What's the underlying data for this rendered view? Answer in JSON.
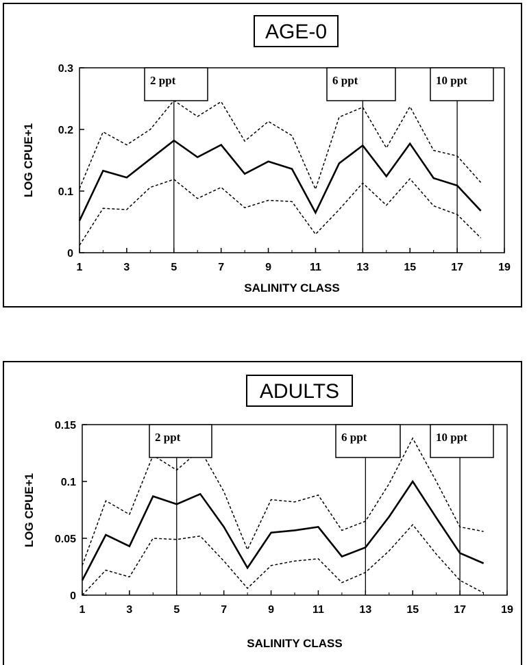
{
  "chart_data": [
    {
      "type": "line",
      "title": "AGE-0",
      "xlabel": "SALINITY CLASS",
      "ylabel": "LOG CPUE+1",
      "xlim": [
        1,
        19
      ],
      "ylim": [
        0,
        0.3
      ],
      "xticks": [
        1,
        3,
        5,
        7,
        9,
        11,
        13,
        15,
        17,
        19
      ],
      "yticks": [
        0,
        0.1,
        0.2,
        0.3
      ],
      "ytick_labels": [
        "0",
        "0.1",
        "0.2",
        "0.3"
      ],
      "x": [
        1,
        2,
        3,
        4,
        5,
        6,
        7,
        8,
        9,
        10,
        11,
        12,
        13,
        14,
        15,
        16,
        17,
        18
      ],
      "series": [
        {
          "style": "solid",
          "values": [
            0.052,
            0.133,
            0.122,
            0.152,
            0.182,
            0.155,
            0.175,
            0.128,
            0.148,
            0.136,
            0.065,
            0.145,
            0.174,
            0.124,
            0.177,
            0.121,
            0.109,
            0.068
          ]
        },
        {
          "style": "dotted",
          "values": [
            0.104,
            0.196,
            0.175,
            0.2,
            0.247,
            0.221,
            0.245,
            0.181,
            0.213,
            0.19,
            0.103,
            0.22,
            0.236,
            0.17,
            0.237,
            0.166,
            0.157,
            0.114
          ]
        },
        {
          "style": "dotted",
          "values": [
            0.012,
            0.072,
            0.07,
            0.106,
            0.119,
            0.088,
            0.106,
            0.073,
            0.085,
            0.083,
            0.03,
            0.07,
            0.113,
            0.077,
            0.12,
            0.076,
            0.062,
            0.024
          ]
        }
      ],
      "annotations": [
        {
          "text": "2 ppt",
          "x": 5
        },
        {
          "text": "6 ppt",
          "x": 13
        },
        {
          "text": "10 ppt",
          "x": 17
        }
      ]
    },
    {
      "type": "line",
      "title": "ADULTS",
      "xlabel": "SALINITY CLASS",
      "ylabel": "LOG CPUE+1",
      "xlim": [
        1,
        19
      ],
      "ylim": [
        0,
        0.15
      ],
      "xticks": [
        1,
        3,
        5,
        7,
        9,
        11,
        13,
        15,
        17,
        19
      ],
      "yticks": [
        0,
        0.05,
        0.1,
        0.15
      ],
      "ytick_labels": [
        "0",
        "0.05",
        "0.1",
        "0.15"
      ],
      "x": [
        1,
        2,
        3,
        4,
        5,
        6,
        7,
        8,
        9,
        10,
        11,
        12,
        13,
        14,
        15,
        16,
        17,
        18
      ],
      "series": [
        {
          "style": "solid",
          "values": [
            0.013,
            0.053,
            0.043,
            0.087,
            0.08,
            0.089,
            0.06,
            0.024,
            0.055,
            0.057,
            0.06,
            0.034,
            0.042,
            0.069,
            0.1,
            0.068,
            0.037,
            0.028
          ]
        },
        {
          "style": "dotted",
          "values": [
            0.026,
            0.083,
            0.071,
            0.123,
            0.11,
            0.128,
            0.091,
            0.04,
            0.084,
            0.082,
            0.088,
            0.057,
            0.065,
            0.098,
            0.138,
            0.1,
            0.06,
            0.056
          ]
        },
        {
          "style": "dotted",
          "values": [
            0.0,
            0.022,
            0.016,
            0.05,
            0.049,
            0.052,
            0.03,
            0.006,
            0.026,
            0.03,
            0.032,
            0.011,
            0.02,
            0.039,
            0.062,
            0.036,
            0.013,
            0.002
          ]
        }
      ],
      "annotations": [
        {
          "text": "2 ppt",
          "x": 5
        },
        {
          "text": "6 ppt",
          "x": 13
        },
        {
          "text": "10 ppt",
          "x": 17
        }
      ]
    }
  ]
}
